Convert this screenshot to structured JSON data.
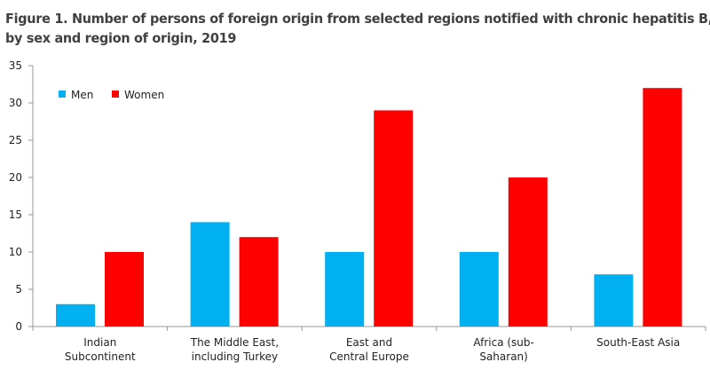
{
  "chart_data": {
    "type": "bar",
    "title_line1": "Figure 1. Number of persons of foreign origin from selected regions notified with chronic hepatitis B,",
    "title_line2": "by sex and region of origin, 2019",
    "categories": [
      [
        "Indian",
        "Subcontinent"
      ],
      [
        "The Middle East,",
        "including Turkey"
      ],
      [
        "East and",
        "Central Europe"
      ],
      [
        "Africa (sub-",
        "Saharan)"
      ],
      [
        "South-East Asia",
        ""
      ]
    ],
    "series": [
      {
        "name": "Men",
        "color": "#00B0F0",
        "values": [
          3,
          14,
          10,
          10,
          7
        ]
      },
      {
        "name": "Women",
        "color": "#FF0000",
        "values": [
          10,
          12,
          29,
          20,
          32
        ]
      }
    ],
    "ylim": [
      0,
      35
    ],
    "yticks": [
      0,
      5,
      10,
      15,
      20,
      25,
      30,
      35
    ],
    "xlabel": "",
    "ylabel": "",
    "grid": false,
    "legend": "top-left"
  }
}
